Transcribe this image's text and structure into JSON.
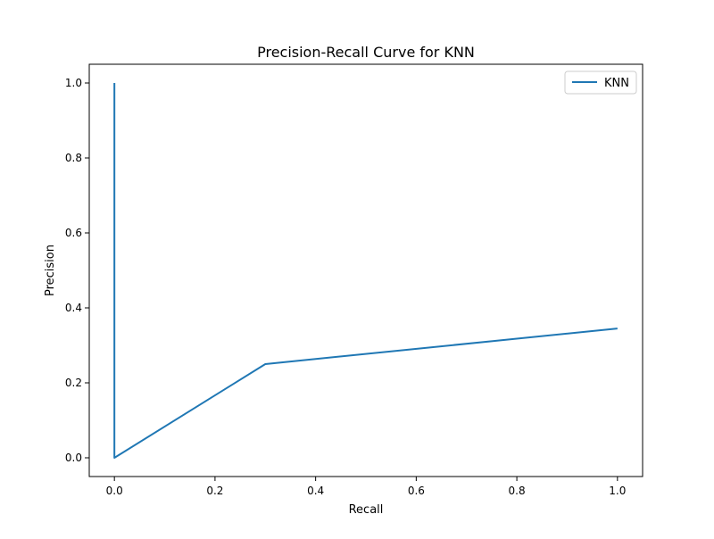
{
  "chart_data": {
    "type": "line",
    "title": "Precision-Recall Curve for KNN",
    "xlabel": "Recall",
    "ylabel": "Precision",
    "xlim": [
      -0.05,
      1.05
    ],
    "ylim": [
      -0.05,
      1.05
    ],
    "xticks": [
      0.0,
      0.2,
      0.4,
      0.6,
      0.8,
      1.0
    ],
    "yticks": [
      0.0,
      0.2,
      0.4,
      0.6,
      0.8,
      1.0
    ],
    "xtick_labels": [
      "0.0",
      "0.2",
      "0.4",
      "0.6",
      "0.8",
      "1.0"
    ],
    "ytick_labels": [
      "0.0",
      "0.2",
      "0.4",
      "0.6",
      "0.8",
      "1.0"
    ],
    "grid": false,
    "legend_position": "top-right",
    "series": [
      {
        "name": "KNN",
        "color": "#1f77b4",
        "x": [
          0.0,
          0.0,
          0.3,
          1.0
        ],
        "y": [
          1.0,
          0.0,
          0.25,
          0.345
        ]
      }
    ]
  }
}
